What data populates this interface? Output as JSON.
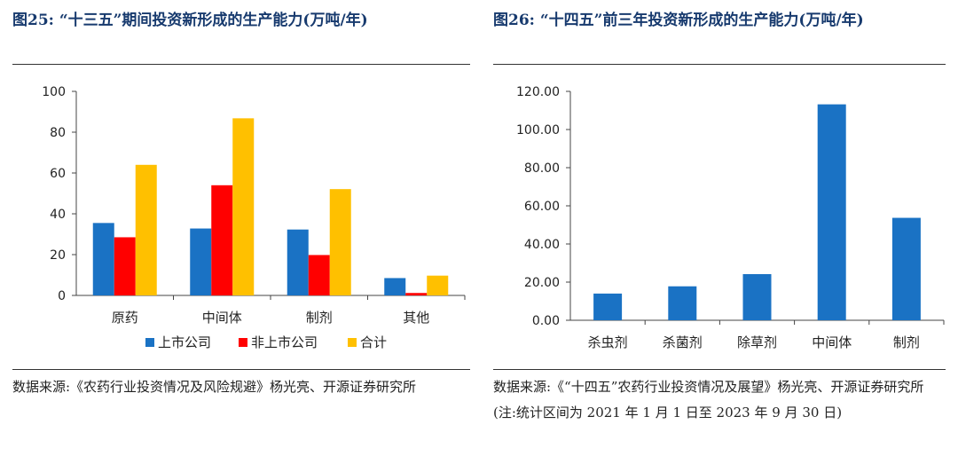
{
  "left": {
    "title": "图25:  “十三五”期间投资新形成的生产能力(万吨/年)",
    "source": "数据来源:《农药行业投资情况及风险规避》杨光亮、开源证券研究所"
  },
  "right": {
    "title": "图26:  “十四五”前三年投资新形成的生产能力(万吨/年)",
    "source": "数据来源:《“十四五”农药行业投资情况及展望》杨光亮、开源证券研究所(注:统计区间为 2021 年 1 月 1 日至 2023 年 9 月 30 日)"
  },
  "chart_data": [
    {
      "type": "bar",
      "categories": [
        "原药",
        "中间体",
        "制剂",
        "其他"
      ],
      "series": [
        {
          "name": "上市公司",
          "values": [
            35.5,
            32.8,
            32.3,
            8.5
          ],
          "color": "#1a72c4"
        },
        {
          "name": "非上市公司",
          "values": [
            28.5,
            54.0,
            19.8,
            1.2
          ],
          "color": "#ff0000"
        },
        {
          "name": "合计",
          "values": [
            64.0,
            86.8,
            52.1,
            9.7
          ],
          "color": "#ffc000"
        }
      ],
      "yticks": [
        "0",
        "20",
        "40",
        "60",
        "80",
        "100"
      ],
      "ylim": [
        0,
        100
      ],
      "legend": "bottom"
    },
    {
      "type": "bar",
      "categories": [
        "杀虫剂",
        "杀菌剂",
        "除草剂",
        "中间体",
        "制剂"
      ],
      "values": [
        14.0,
        17.8,
        24.2,
        113.2,
        53.7
      ],
      "color": "#1a72c4",
      "yticks": [
        "0.00",
        "20.00",
        "40.00",
        "60.00",
        "80.00",
        "100.00",
        "120.00"
      ],
      "ylim": [
        0,
        120
      ]
    }
  ]
}
